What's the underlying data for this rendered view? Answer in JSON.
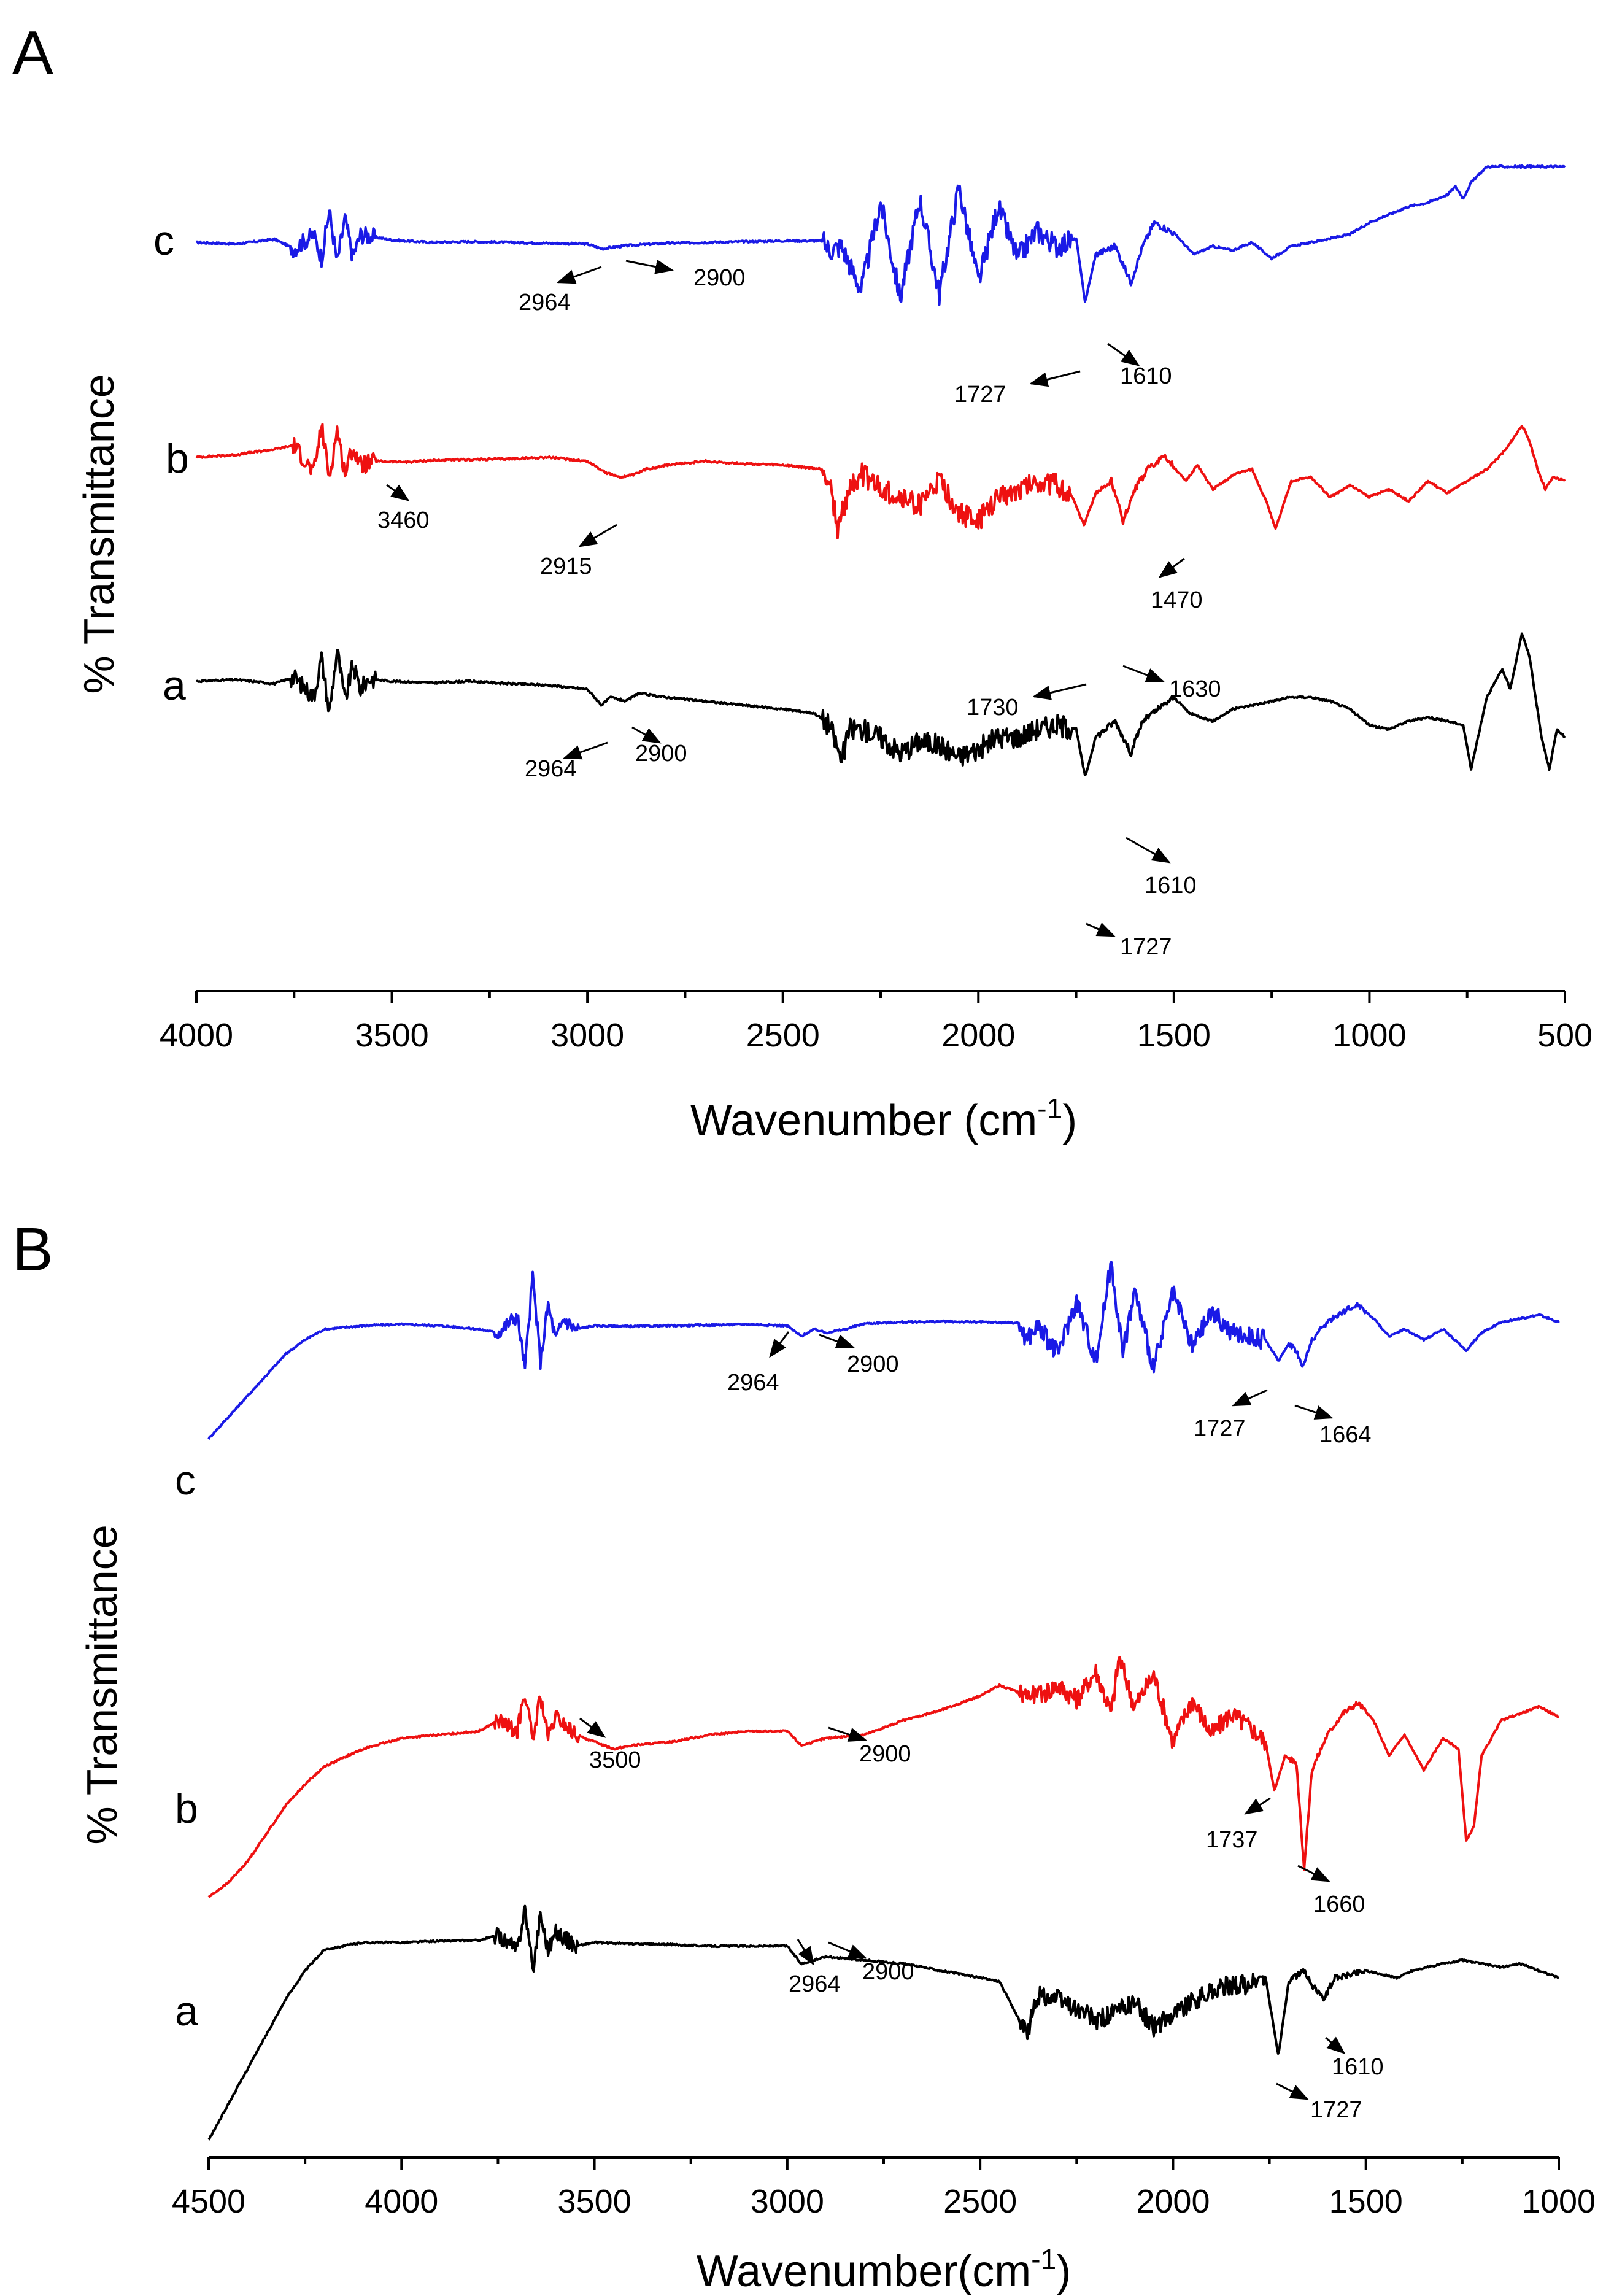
{
  "chart_data": [
    {
      "type": "line",
      "panel": "A",
      "xlabel": "Wavenumber (cm",
      "xlabel_sup": "-1",
      "xlabel_close": ")",
      "ylabel": "% Transmittance",
      "xlim": [
        4000,
        500
      ],
      "xticks": [
        4000,
        3500,
        3000,
        2500,
        2000,
        1500,
        1000,
        500
      ],
      "series": [
        {
          "name": "c",
          "color": "#1a1ae6",
          "x": [
            4000,
            3900,
            3800,
            3750,
            3700,
            3680,
            3660,
            3640,
            3620,
            3600,
            3580,
            3500,
            3400,
            3300,
            3200,
            3100,
            3000,
            2964,
            2900,
            2800,
            2700,
            2600,
            2500,
            2400,
            2380,
            2350,
            2300,
            2250,
            2200,
            2150,
            2100,
            2050,
            2000,
            1950,
            1900,
            1850,
            1800,
            1750,
            1727,
            1700,
            1650,
            1610,
            1580,
            1550,
            1500,
            1450,
            1400,
            1350,
            1300,
            1250,
            1200,
            1150,
            1100,
            1050,
            1000,
            950,
            900,
            850,
            800,
            780,
            760,
            740,
            720,
            700
          ],
          "y": [
            0,
            -2,
            4,
            -8,
            10,
            -20,
            40,
            -25,
            30,
            -18,
            10,
            3,
            0,
            1,
            0,
            -1,
            -2,
            -8,
            -4,
            -1,
            0,
            1,
            2,
            2,
            -10,
            -5,
            -60,
            50,
            -70,
            55,
            -65,
            70,
            -50,
            45,
            -20,
            15,
            -5,
            5,
            -75,
            -15,
            -5,
            -50,
            -5,
            25,
            12,
            -15,
            -5,
            -10,
            0,
            -20,
            -5,
            0,
            5,
            10,
            25,
            35,
            45,
            50,
            60,
            70,
            55,
            75,
            85,
            95
          ]
        },
        {
          "name": "b",
          "color": "#ee1111",
          "x": [
            4000,
            3900,
            3800,
            3750,
            3700,
            3680,
            3660,
            3640,
            3620,
            3600,
            3580,
            3540,
            3460,
            3400,
            3300,
            3200,
            3100,
            3000,
            2950,
            2915,
            2880,
            2850,
            2800,
            2700,
            2600,
            2500,
            2400,
            2380,
            2360,
            2330,
            2300,
            2250,
            2200,
            2150,
            2100,
            2050,
            2000,
            1950,
            1900,
            1850,
            1800,
            1760,
            1730,
            1700,
            1660,
            1630,
            1600,
            1560,
            1520,
            1470,
            1440,
            1400,
            1340,
            1300,
            1260,
            1240,
            1200,
            1150,
            1100,
            1050,
            1000,
            950,
            900,
            850,
            800,
            750,
            700,
            650,
            610,
            590,
            570,
            550,
            530,
            500
          ],
          "y": [
            0,
            3,
            10,
            15,
            -20,
            40,
            -25,
            35,
            -20,
            12,
            -10,
            -5,
            -6,
            -4,
            -3,
            -2,
            0,
            -5,
            -20,
            -25,
            -22,
            -15,
            -10,
            -5,
            -8,
            -10,
            -15,
            -30,
            -90,
            -40,
            -20,
            -40,
            -50,
            -60,
            -30,
            -70,
            -80,
            -50,
            -40,
            -30,
            -35,
            -50,
            -85,
            -45,
            -30,
            -80,
            -40,
            -10,
            0,
            -30,
            -10,
            -40,
            -20,
            -15,
            -60,
            -90,
            -30,
            -25,
            -50,
            -35,
            -50,
            -40,
            -55,
            -30,
            -45,
            -30,
            -15,
            10,
            40,
            20,
            -15,
            -40,
            -25,
            -30
          ]
        },
        {
          "name": "a",
          "color": "#000000",
          "x": [
            4000,
            3900,
            3800,
            3750,
            3700,
            3680,
            3660,
            3640,
            3620,
            3600,
            3580,
            3560,
            3500,
            3400,
            3300,
            3200,
            3100,
            3000,
            2964,
            2940,
            2900,
            2870,
            2800,
            2700,
            2600,
            2500,
            2420,
            2380,
            2350,
            2330,
            2300,
            2250,
            2200,
            2150,
            2100,
            2050,
            2000,
            1950,
            1900,
            1850,
            1800,
            1750,
            1727,
            1700,
            1650,
            1610,
            1580,
            1540,
            1500,
            1460,
            1400,
            1350,
            1300,
            1250,
            1200,
            1150,
            1100,
            1050,
            1000,
            950,
            900,
            850,
            800,
            760,
            740,
            700,
            660,
            640,
            610,
            590,
            560,
            540,
            520,
            500
          ],
          "y": [
            0,
            2,
            -3,
            5,
            -20,
            30,
            -40,
            40,
            -25,
            20,
            -10,
            3,
            0,
            -2,
            0,
            -3,
            -5,
            -10,
            -30,
            -20,
            -25,
            -15,
            -20,
            -25,
            -30,
            -35,
            -40,
            -55,
            -100,
            -60,
            -60,
            -70,
            -90,
            -75,
            -80,
            -95,
            -85,
            -70,
            -70,
            -60,
            -55,
            -60,
            -120,
            -70,
            -50,
            -90,
            -50,
            -35,
            -20,
            -40,
            -50,
            -35,
            -30,
            -25,
            -20,
            -20,
            -25,
            -35,
            -55,
            -60,
            -50,
            -45,
            -50,
            -55,
            -110,
            -20,
            15,
            -10,
            60,
            30,
            -70,
            -110,
            -60,
            -70
          ]
        }
      ],
      "series_labels": [
        "c",
        "b",
        "a"
      ],
      "annotations": [
        {
          "series": "c",
          "label": "2964"
        },
        {
          "series": "c",
          "label": "2900"
        },
        {
          "series": "c",
          "label": "1727"
        },
        {
          "series": "c",
          "label": "1610"
        },
        {
          "series": "b",
          "label": "3460"
        },
        {
          "series": "b",
          "label": "2915"
        },
        {
          "series": "b",
          "label": "1730"
        },
        {
          "series": "b",
          "label": "1630"
        },
        {
          "series": "b",
          "label": "1470"
        },
        {
          "series": "a",
          "label": "2964"
        },
        {
          "series": "a",
          "label": "2900"
        },
        {
          "series": "a",
          "label": "1610"
        },
        {
          "series": "a",
          "label": "1727"
        }
      ]
    },
    {
      "type": "line",
      "panel": "B",
      "xlabel": "Wavenumber(cm",
      "xlabel_sup": "-1",
      "xlabel_close": ")",
      "ylabel": "% Transmittance",
      "xlim": [
        4500,
        1000
      ],
      "xticks": [
        4500,
        4000,
        3500,
        3000,
        2500,
        2000,
        1500,
        1000
      ],
      "series": [
        {
          "name": "c",
          "color": "#1a1ae6",
          "x": [
            4500,
            4450,
            4400,
            4350,
            4300,
            4250,
            4200,
            4100,
            4000,
            3900,
            3800,
            3750,
            3700,
            3680,
            3660,
            3640,
            3620,
            3600,
            3580,
            3550,
            3500,
            3400,
            3300,
            3200,
            3100,
            3000,
            2964,
            2930,
            2900,
            2850,
            2800,
            2700,
            2600,
            2500,
            2400,
            2380,
            2350,
            2300,
            2250,
            2200,
            2160,
            2130,
            2100,
            2050,
            2000,
            1950,
            1900,
            1850,
            1800,
            1760,
            1727,
            1700,
            1680,
            1664,
            1640,
            1600,
            1560,
            1520,
            1480,
            1440,
            1400,
            1350,
            1300,
            1260,
            1240,
            1200,
            1150,
            1100,
            1050,
            1000
          ],
          "y": [
            -160,
            -130,
            -100,
            -70,
            -40,
            -20,
            -5,
            0,
            2,
            0,
            -5,
            -10,
            15,
            -60,
            70,
            -50,
            30,
            -20,
            10,
            -5,
            0,
            -1,
            0,
            1,
            2,
            0,
            -15,
            -5,
            -10,
            -5,
            3,
            5,
            6,
            5,
            4,
            -20,
            0,
            -40,
            35,
            -50,
            90,
            -40,
            50,
            -60,
            45,
            -30,
            20,
            -10,
            -15,
            -20,
            -50,
            -25,
            -35,
            -60,
            -20,
            5,
            20,
            30,
            10,
            -15,
            -5,
            -20,
            -5,
            -25,
            -35,
            -10,
            5,
            10,
            15,
            5
          ]
        },
        {
          "name": "b",
          "color": "#ee1111",
          "x": [
            4500,
            4450,
            4400,
            4350,
            4300,
            4250,
            4200,
            4100,
            4000,
            3900,
            3800,
            3750,
            3700,
            3680,
            3660,
            3640,
            3620,
            3600,
            3550,
            3500,
            3450,
            3400,
            3300,
            3200,
            3100,
            3000,
            2964,
            2930,
            2900,
            2800,
            2700,
            2600,
            2500,
            2450,
            2400,
            2350,
            2300,
            2250,
            2200,
            2160,
            2140,
            2100,
            2050,
            2000,
            1950,
            1900,
            1850,
            1800,
            1760,
            1737,
            1710,
            1680,
            1660,
            1640,
            1600,
            1560,
            1520,
            1480,
            1440,
            1400,
            1350,
            1300,
            1260,
            1240,
            1220,
            1200,
            1150,
            1100,
            1050,
            1000
          ],
          "y": [
            -240,
            -220,
            -190,
            -150,
            -110,
            -80,
            -55,
            -30,
            -15,
            -10,
            -5,
            10,
            -5,
            50,
            -20,
            45,
            -15,
            15,
            -10,
            -20,
            -30,
            -25,
            -20,
            -10,
            -5,
            -5,
            -25,
            -20,
            -15,
            -10,
            10,
            25,
            45,
            60,
            50,
            45,
            60,
            40,
            80,
            20,
            100,
            30,
            75,
            -20,
            40,
            -10,
            20,
            0,
            -20,
            -90,
            -40,
            -50,
            -200,
            -60,
            -10,
            20,
            35,
            10,
            -40,
            -10,
            -60,
            -15,
            -30,
            -160,
            -140,
            -40,
            10,
            20,
            30,
            15
          ]
        },
        {
          "name": "a",
          "color": "#000000",
          "x": [
            4500,
            4450,
            4400,
            4350,
            4300,
            4250,
            4200,
            4100,
            4000,
            3900,
            3800,
            3750,
            3700,
            3680,
            3660,
            3640,
            3620,
            3600,
            3550,
            3500,
            3400,
            3300,
            3200,
            3100,
            3000,
            2964,
            2930,
            2900,
            2800,
            2700,
            2600,
            2500,
            2450,
            2380,
            2350,
            2300,
            2250,
            2200,
            2150,
            2100,
            2050,
            2000,
            1950,
            1900,
            1850,
            1800,
            1760,
            1727,
            1700,
            1660,
            1640,
            1610,
            1580,
            1540,
            1500,
            1460,
            1420,
            1380,
            1340,
            1300,
            1250,
            1200,
            1150,
            1100,
            1050,
            1000
          ],
          "y": [
            -280,
            -230,
            -180,
            -130,
            -80,
            -40,
            -10,
            0,
            0,
            2,
            3,
            10,
            -10,
            50,
            -40,
            40,
            -10,
            15,
            -5,
            0,
            -2,
            -3,
            -5,
            -5,
            -5,
            -30,
            -25,
            -20,
            -25,
            -30,
            -40,
            -50,
            -55,
            -130,
            -75,
            -80,
            -95,
            -110,
            -100,
            -85,
            -120,
            -100,
            -85,
            -70,
            -60,
            -60,
            -50,
            -160,
            -55,
            -40,
            -60,
            -80,
            -50,
            -45,
            -40,
            -45,
            -50,
            -40,
            -35,
            -30,
            -25,
            -30,
            -35,
            -30,
            -40,
            -50
          ]
        }
      ],
      "series_labels": [
        "c",
        "b",
        "a"
      ],
      "annotations": [
        {
          "series": "c",
          "label": "2964"
        },
        {
          "series": "c",
          "label": "2900"
        },
        {
          "series": "c",
          "label": "1727"
        },
        {
          "series": "c",
          "label": "1664"
        },
        {
          "series": "b",
          "label": "3500"
        },
        {
          "series": "b",
          "label": "2900"
        },
        {
          "series": "b",
          "label": "1737"
        },
        {
          "series": "b",
          "label": "1660"
        },
        {
          "series": "a",
          "label": "2964"
        },
        {
          "series": "a",
          "label": "2900"
        },
        {
          "series": "a",
          "label": "1610"
        },
        {
          "series": "a",
          "label": "1727"
        }
      ]
    }
  ]
}
